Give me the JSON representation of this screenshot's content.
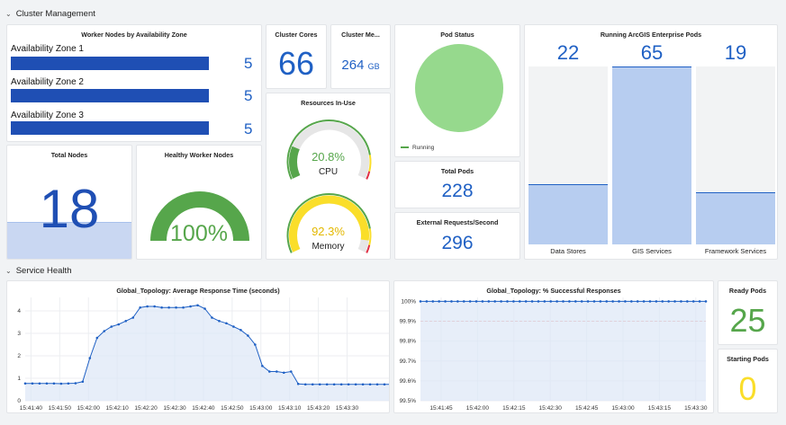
{
  "rows": {
    "cluster": "Cluster Management",
    "service": "Service Health"
  },
  "worker_nodes": {
    "title": "Worker Nodes by Availability Zone",
    "zones": [
      {
        "label": "Availability Zone 1",
        "value": "5"
      },
      {
        "label": "Availability Zone 2",
        "value": "5"
      },
      {
        "label": "Availability Zone 3",
        "value": "5"
      }
    ]
  },
  "cluster_cores": {
    "title": "Cluster Cores",
    "value": "66"
  },
  "cluster_memory": {
    "title": "Cluster Me...",
    "value": "264",
    "unit": "GB"
  },
  "resources": {
    "title": "Resources In-Use",
    "cpu": {
      "value": "20.8%",
      "label": "CPU",
      "fraction": 0.208,
      "color": "#56a64b"
    },
    "memory": {
      "value": "92.3%",
      "label": "Memory",
      "fraction": 0.923,
      "color": "#fade2a"
    }
  },
  "pod_status": {
    "title": "Pod Status",
    "legend": "Running",
    "color": "#96d98d"
  },
  "total_pods": {
    "title": "Total Pods",
    "value": "228"
  },
  "external_requests": {
    "title": "External Requests/Second",
    "value": "296"
  },
  "running_pods": {
    "title": "Running ArcGIS Enterprise Pods",
    "max": 65,
    "items": [
      {
        "label": "Data Stores",
        "value": 22,
        "text": "22"
      },
      {
        "label": "GIS Services",
        "value": 65,
        "text": "65"
      },
      {
        "label": "Framework Services",
        "value": 19,
        "text": "19"
      }
    ]
  },
  "total_nodes": {
    "title": "Total Nodes",
    "value": "18"
  },
  "healthy_workers": {
    "title": "Healthy Worker Nodes",
    "value": "100%",
    "fraction": 1.0,
    "color": "#56a64b"
  },
  "ready_pods": {
    "title": "Ready Pods",
    "value": "25"
  },
  "starting_pods": {
    "title": "Starting Pods",
    "value": "0"
  },
  "chart_data": [
    {
      "type": "line",
      "title": "Global_Topology: Average Response Time (seconds)",
      "ylim": [
        0,
        4.6
      ],
      "yticks": [
        "0",
        "1",
        "2",
        "3",
        "4"
      ],
      "xticks": [
        "15:41:40",
        "15:41:50",
        "15:42:00",
        "15:42:10",
        "15:42:20",
        "15:42:30",
        "15:42:40",
        "15:42:50",
        "15:43:00",
        "15:43:10",
        "15:43:20",
        "15:43:30"
      ],
      "x_start_sec": 98,
      "x_step_sec": 2.5,
      "color": "#1f60c4",
      "values": [
        0.77,
        0.77,
        0.77,
        0.77,
        0.77,
        0.76,
        0.77,
        0.78,
        0.85,
        1.9,
        2.8,
        3.1,
        3.3,
        3.4,
        3.55,
        3.7,
        4.15,
        4.2,
        4.2,
        4.15,
        4.15,
        4.15,
        4.15,
        4.2,
        4.25,
        4.1,
        3.7,
        3.55,
        3.45,
        3.3,
        3.15,
        2.9,
        2.5,
        1.55,
        1.3,
        1.3,
        1.25,
        1.3,
        0.75,
        0.73,
        0.73,
        0.73,
        0.73,
        0.73,
        0.73,
        0.73,
        0.73,
        0.73,
        0.73,
        0.73,
        0.73,
        0.73
      ]
    },
    {
      "type": "line",
      "title": "Global_Topology: % Successful Responses",
      "ylim": [
        99.5,
        100.02
      ],
      "yticks": [
        "99.5%",
        "99.6%",
        "99.7%",
        "99.8%",
        "99.9%",
        "100%"
      ],
      "xticks": [
        "15:41:45",
        "15:42:00",
        "15:42:15",
        "15:42:30",
        "15:42:45",
        "15:43:00",
        "15:43:15",
        "15:43:30"
      ],
      "threshold": 99.9,
      "color": "#1f60c4",
      "values": [
        100,
        100,
        100,
        100,
        100,
        100,
        100,
        100,
        100,
        100,
        100,
        100,
        100,
        100,
        100,
        100,
        100,
        100,
        100,
        100,
        100,
        100,
        100,
        100,
        100,
        100,
        100,
        100,
        100,
        100,
        100,
        100,
        100,
        100,
        100,
        100,
        100,
        100,
        100,
        100,
        100,
        100,
        100,
        100,
        100,
        100,
        100
      ]
    }
  ]
}
